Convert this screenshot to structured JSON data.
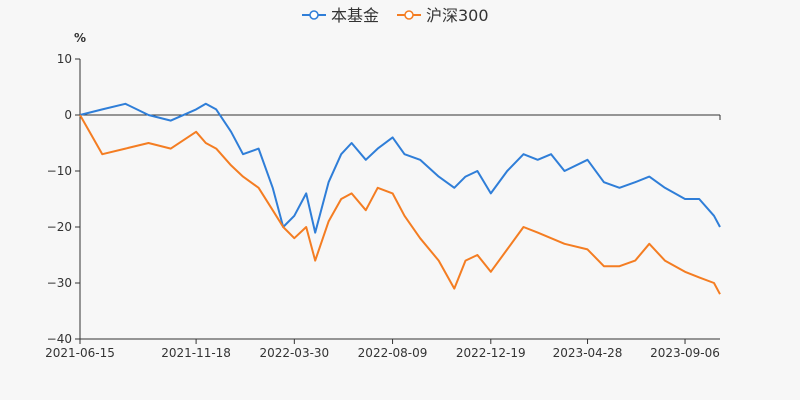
{
  "chart_data": {
    "type": "line",
    "title": "",
    "ylabel": "%",
    "xlabel": "",
    "ylim": [
      -40,
      10
    ],
    "yticks": [
      10,
      0,
      -10,
      -20,
      -30,
      -40
    ],
    "ytick_labels": [
      "10",
      "0",
      "−10",
      "−20",
      "−30",
      "−40"
    ],
    "xticks": [
      "2021-06-15",
      "2021-11-18",
      "2022-03-30",
      "2022-08-09",
      "2022-12-19",
      "2023-04-28",
      "2023-09-06"
    ],
    "x": [
      "2021-06-15",
      "2021-07-15",
      "2021-08-15",
      "2021-09-15",
      "2021-10-15",
      "2021-11-18",
      "2021-12-01",
      "2021-12-15",
      "2022-01-04",
      "2022-01-20",
      "2022-02-10",
      "2022-03-01",
      "2022-03-15",
      "2022-03-30",
      "2022-04-15",
      "2022-04-27",
      "2022-05-15",
      "2022-06-01",
      "2022-06-15",
      "2022-07-04",
      "2022-07-20",
      "2022-08-09",
      "2022-08-25",
      "2022-09-15",
      "2022-10-10",
      "2022-10-31",
      "2022-11-15",
      "2022-12-01",
      "2022-12-19",
      "2023-01-10",
      "2023-02-01",
      "2023-02-20",
      "2023-03-10",
      "2023-03-28",
      "2023-04-28",
      "2023-05-20",
      "2023-06-10",
      "2023-07-01",
      "2023-07-20",
      "2023-08-10",
      "2023-09-06",
      "2023-09-25",
      "2023-10-15",
      "2023-10-23"
    ],
    "series": [
      {
        "name": "本基金",
        "color": "#2f7ed8",
        "values": [
          0,
          1,
          2,
          0,
          -1,
          1,
          2,
          1,
          -3,
          -7,
          -6,
          -13,
          -20,
          -18,
          -14,
          -21,
          -12,
          -7,
          -5,
          -8,
          -6,
          -4,
          -7,
          -8,
          -11,
          -13,
          -11,
          -10,
          -14,
          -10,
          -7,
          -8,
          -7,
          -10,
          -8,
          -12,
          -13,
          -12,
          -11,
          -13,
          -15,
          -15,
          -18,
          -20
        ]
      },
      {
        "name": "沪深300",
        "color": "#f47d22",
        "values": [
          0,
          -7,
          -6,
          -5,
          -6,
          -3,
          -5,
          -6,
          -9,
          -11,
          -13,
          -17,
          -20,
          -22,
          -20,
          -26,
          -19,
          -15,
          -14,
          -17,
          -13,
          -14,
          -18,
          -22,
          -26,
          -31,
          -26,
          -25,
          -28,
          -24,
          -20,
          -21,
          -22,
          -23,
          -24,
          -27,
          -27,
          -26,
          -23,
          -26,
          -28,
          -29,
          -30,
          -32
        ]
      }
    ]
  }
}
